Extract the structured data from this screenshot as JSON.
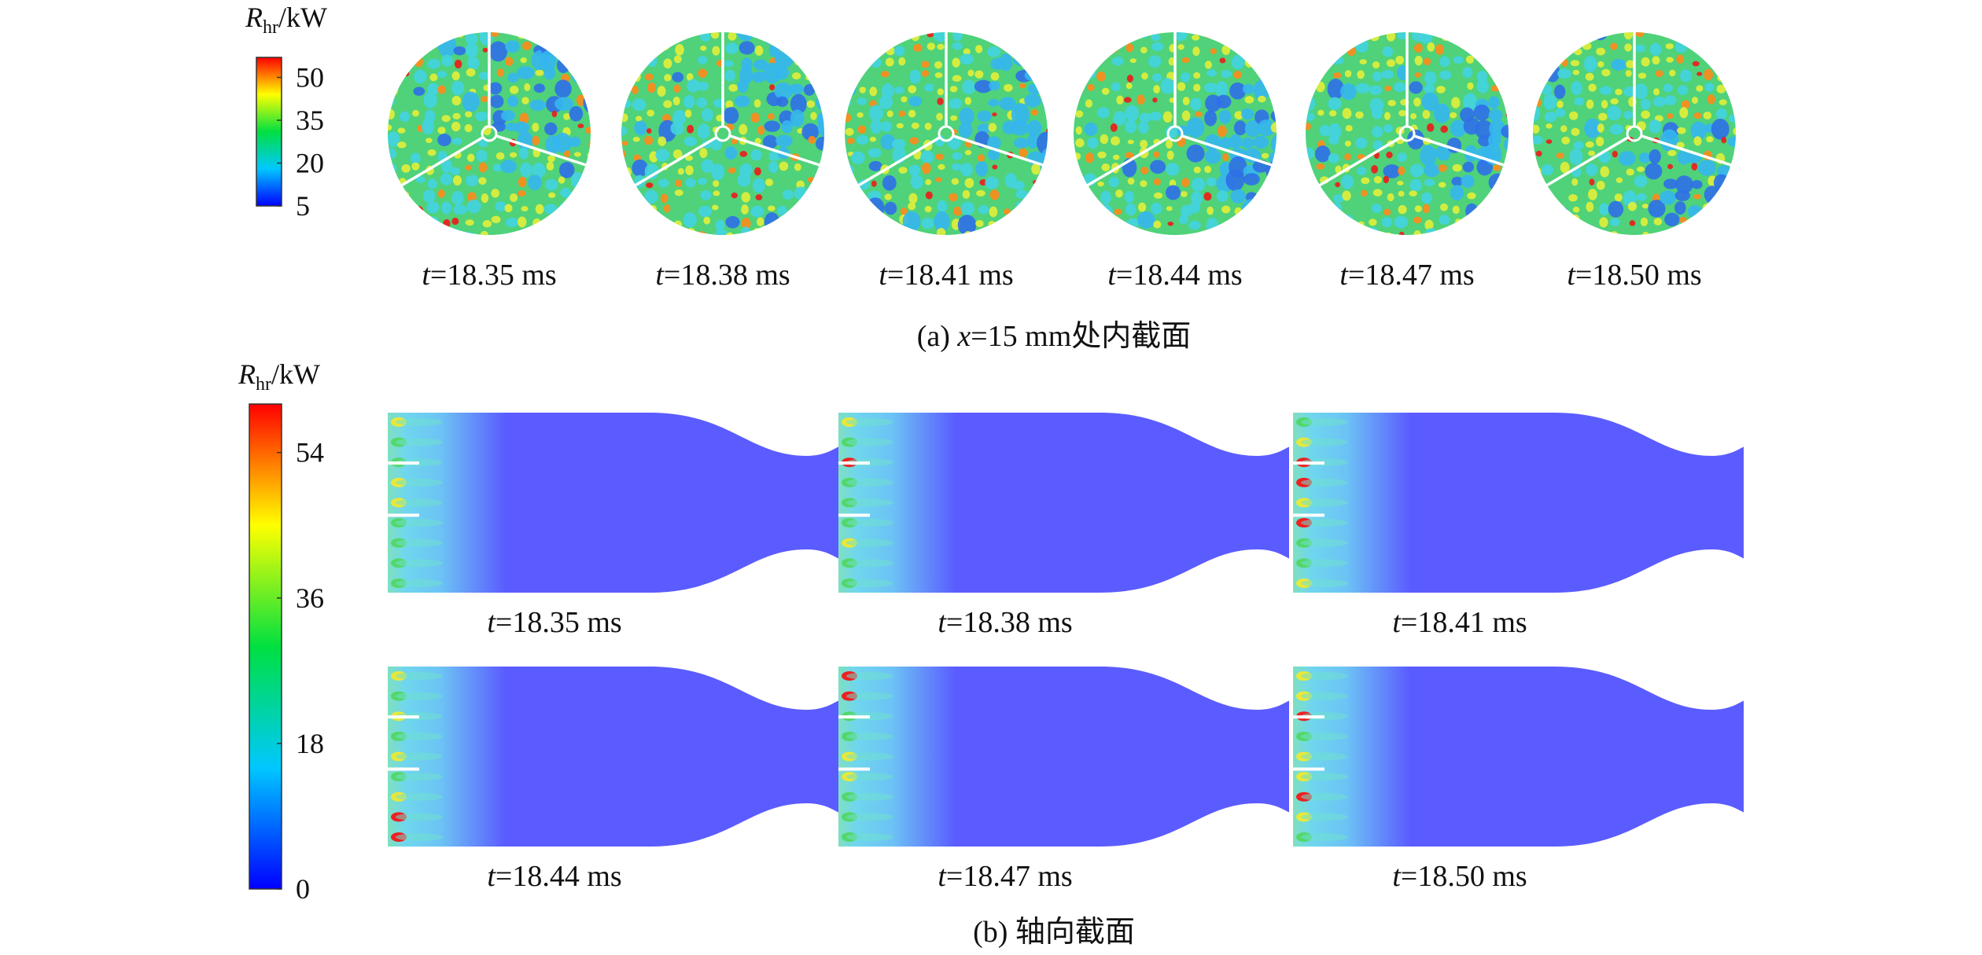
{
  "figure": {
    "panel_a": {
      "colorbar": {
        "label": {
          "symbol": "R",
          "subscript": "hr",
          "unit": "/kW"
        },
        "lim": [
          5,
          57
        ],
        "ticks": [
          5,
          20,
          35,
          50
        ],
        "colormap": [
          "#0000ff",
          "#00c8ff",
          "#00e040",
          "#ffff00",
          "#ff0000"
        ]
      },
      "frames": [
        {
          "var": "t",
          "text": "=18.35 ms"
        },
        {
          "var": "t",
          "text": "=18.38 ms"
        },
        {
          "var": "t",
          "text": "=18.41 ms"
        },
        {
          "var": "t",
          "text": "=18.44 ms"
        },
        {
          "var": "t",
          "text": "=18.47 ms"
        },
        {
          "var": "t",
          "text": "=18.50 ms"
        }
      ],
      "caption": {
        "prefix": "(a) ",
        "var": "x",
        "text": "=15 mm处内截面"
      }
    },
    "panel_b": {
      "colorbar": {
        "label": {
          "symbol": "R",
          "subscript": "hr",
          "unit": "/kW"
        },
        "lim": [
          0,
          60
        ],
        "ticks": [
          0,
          18,
          36,
          54
        ],
        "colormap": [
          "#0000ff",
          "#00c8ff",
          "#00e040",
          "#ffff00",
          "#ff0000"
        ]
      },
      "frames": [
        {
          "var": "t",
          "text": "=18.35 ms"
        },
        {
          "var": "t",
          "text": "=18.38 ms"
        },
        {
          "var": "t",
          "text": "=18.41 ms"
        },
        {
          "var": "t",
          "text": "=18.44 ms"
        },
        {
          "var": "t",
          "text": "=18.47 ms"
        },
        {
          "var": "t",
          "text": "=18.50 ms"
        }
      ],
      "caption": {
        "text": "(b) 轴向截面"
      }
    }
  }
}
